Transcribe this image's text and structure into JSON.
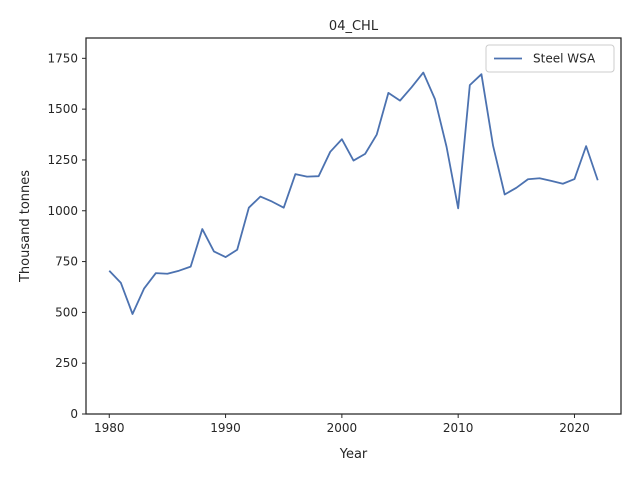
{
  "chart_data": {
    "type": "line",
    "title": "04_CHL",
    "xlabel": "Year",
    "ylabel": "Thousand tonnes",
    "xlim": [
      1978,
      2024
    ],
    "ylim": [
      0,
      1850
    ],
    "xticks": [
      1980,
      1990,
      2000,
      2010,
      2020
    ],
    "yticks": [
      0,
      250,
      500,
      750,
      1000,
      1250,
      1500,
      1750
    ],
    "grid": false,
    "legend_position": "top-right",
    "series": [
      {
        "name": "Steel WSA",
        "color": "#4c72b0",
        "x": [
          1980,
          1981,
          1982,
          1983,
          1984,
          1985,
          1986,
          1987,
          1988,
          1989,
          1990,
          1991,
          1992,
          1993,
          1994,
          1995,
          1996,
          1997,
          1998,
          1999,
          2000,
          2001,
          2002,
          2003,
          2004,
          2005,
          2006,
          2007,
          2008,
          2009,
          2010,
          2011,
          2012,
          2013,
          2014,
          2015,
          2016,
          2017,
          2018,
          2019,
          2020,
          2021,
          2022
        ],
        "values": [
          705,
          645,
          492,
          618,
          693,
          690,
          705,
          725,
          910,
          800,
          772,
          808,
          1015,
          1070,
          1045,
          1015,
          1180,
          1168,
          1170,
          1290,
          1352,
          1247,
          1280,
          1375,
          1580,
          1542,
          1608,
          1680,
          1550,
          1315,
          1012,
          1618,
          1672,
          1320,
          1080,
          1113,
          1155,
          1160,
          1147,
          1133,
          1156,
          1318,
          1150
        ]
      }
    ]
  }
}
